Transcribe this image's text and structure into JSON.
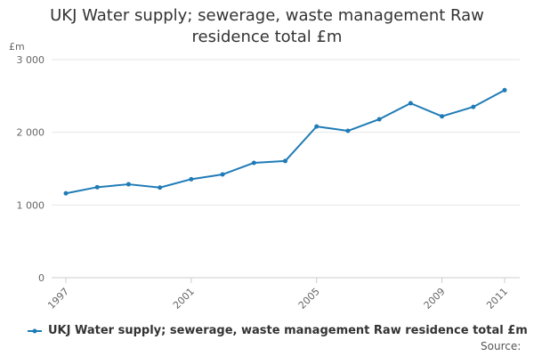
{
  "chart_data": {
    "type": "line",
    "title": "UKJ Water supply; sewerage, waste management Raw residence total £m",
    "ylabel": "£m",
    "xlabel": "",
    "ylim": [
      0,
      3000
    ],
    "yticks": [
      0,
      1000,
      2000,
      3000
    ],
    "ytick_labels": [
      "0",
      "1 000",
      "2 000",
      "3 000"
    ],
    "xticks": [
      "1997",
      "2001",
      "2005",
      "2009",
      "2011"
    ],
    "x": [
      1997,
      1998,
      1999,
      2000,
      2001,
      2002,
      2003,
      2004,
      2005,
      2006,
      2007,
      2008,
      2009,
      2010,
      2011
    ],
    "series": [
      {
        "name": "UKJ Water supply; sewerage, waste management Raw residence total £m",
        "color": "#1f7bb6",
        "values": [
          1160,
          1245,
          1285,
          1240,
          1355,
          1420,
          1580,
          1605,
          2080,
          2020,
          2180,
          2400,
          2220,
          2350,
          2580
        ]
      }
    ],
    "grid": true,
    "legend": "bottom"
  },
  "source_label": "Source:"
}
